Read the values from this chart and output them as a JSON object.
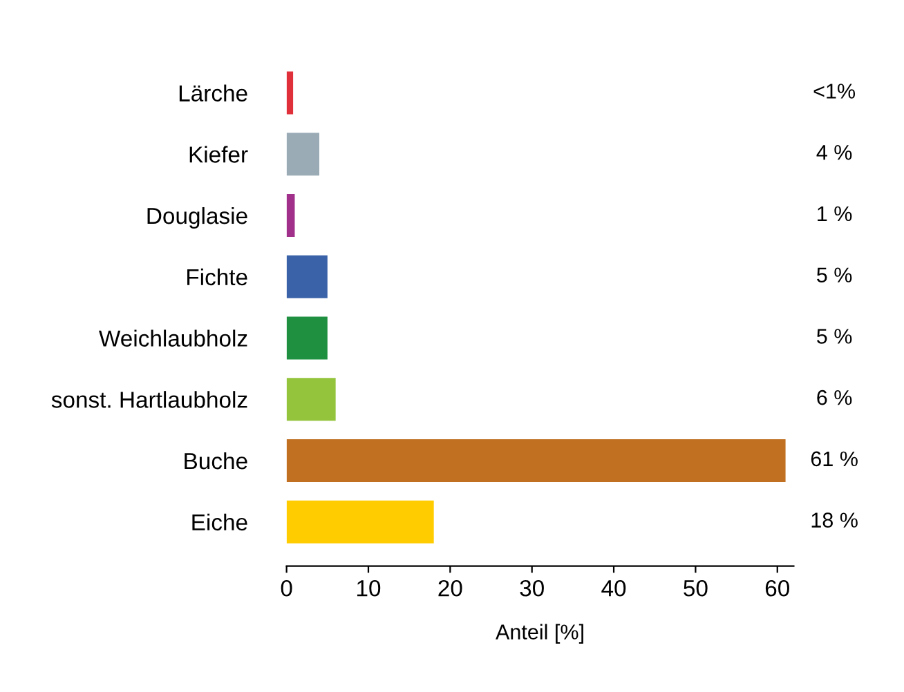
{
  "chart_data": {
    "type": "bar",
    "orientation": "horizontal",
    "xlabel": "Anteil [%]",
    "categories": [
      "Lärche",
      "Kiefer",
      "Douglasie",
      "Fichte",
      "Weichlaubholz",
      "sonst. Hartlaubholz",
      "Buche",
      "Eiche"
    ],
    "values": [
      0.8,
      4,
      1,
      5,
      5,
      6,
      61,
      18
    ],
    "colors": [
      "#e0303a",
      "#9aabb5",
      "#a0308a",
      "#3a62a8",
      "#1e9040",
      "#94c43c",
      "#c07020",
      "#ffcc00"
    ],
    "value_labels": [
      "<1%",
      "4 %",
      "1 %",
      "5 %",
      "5 %",
      "6 %",
      "61 %",
      "18 %"
    ],
    "xlim": [
      0,
      62
    ],
    "xticks": [
      0,
      10,
      20,
      30,
      40,
      50,
      60
    ],
    "grid": false,
    "legend": false
  }
}
